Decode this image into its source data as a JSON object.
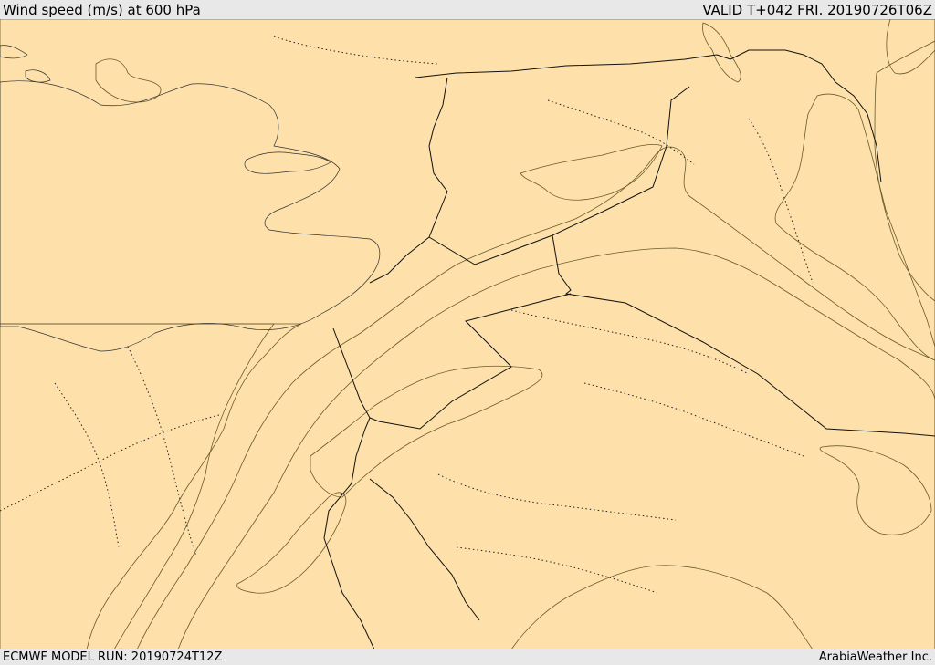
{
  "header": {
    "title": "Wind speed (m/s) at 600 hPa",
    "valid_time": "VALID T+042 FRI. 20190726T06Z"
  },
  "footer": {
    "model_run": "ECMWF MODEL RUN: 20190724T12Z",
    "credit": "ArabiaWeather Inc."
  },
  "colors": {
    "land_base": "#fde0aa",
    "wind_band_1": "#ffff00",
    "wind_band_2": "#ffe000",
    "wind_band_3": "#ffbe00",
    "wind_band_4": "#ff9e10",
    "sea": "#ffffff",
    "header_background": "#e8e8e8"
  }
}
